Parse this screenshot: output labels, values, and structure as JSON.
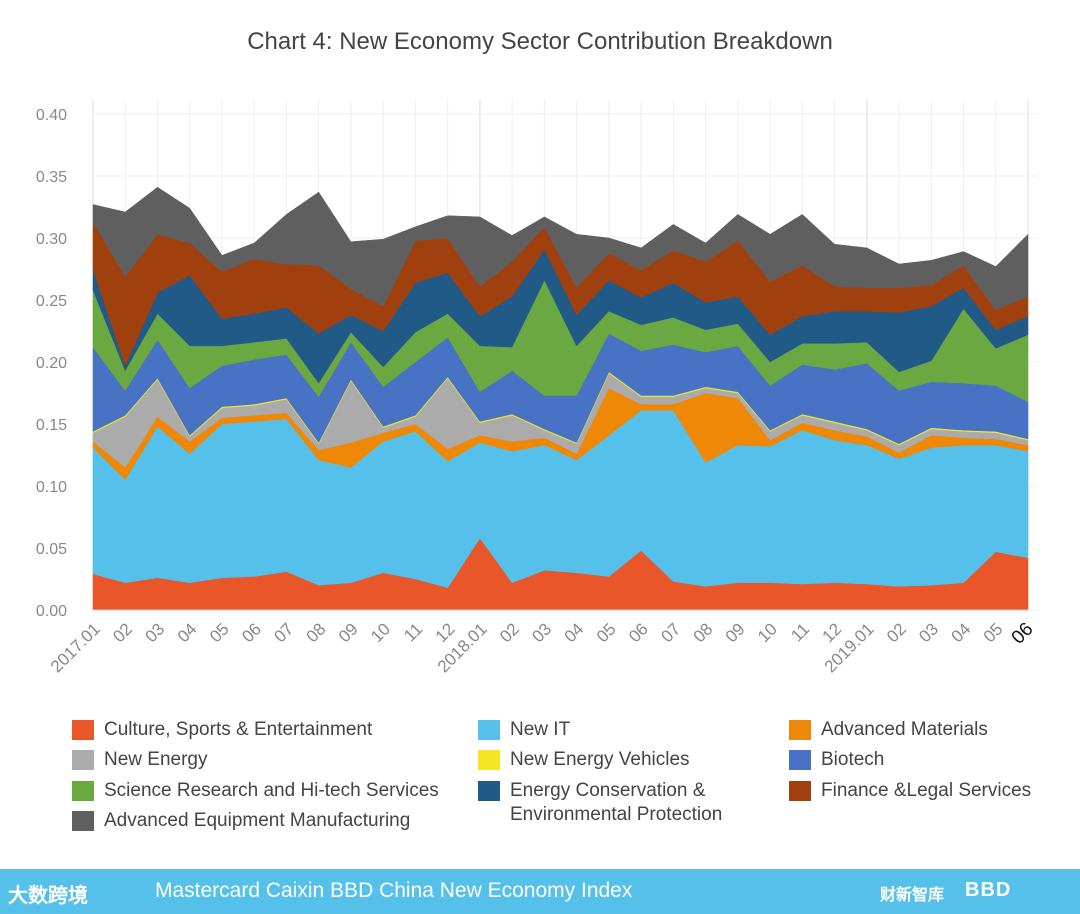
{
  "chart_data": {
    "type": "area",
    "title": "Chart 4: New Economy Sector Contribution Breakdown",
    "ylim": [
      0,
      0.4
    ],
    "yticks": [
      "0.00",
      "0.05",
      "0.10",
      "0.15",
      "0.20",
      "0.25",
      "0.30",
      "0.35",
      "0.40"
    ],
    "x": [
      "2017.01",
      "02",
      "03",
      "04",
      "05",
      "06",
      "07",
      "08",
      "09",
      "10",
      "11",
      "12",
      "2018.01",
      "02",
      "03",
      "04",
      "05",
      "06",
      "07",
      "08",
      "09",
      "10",
      "11",
      "12",
      "2019.01",
      "02",
      "03",
      "04",
      "05",
      "06"
    ],
    "stacked": true,
    "grid": true,
    "legend_position": "bottom",
    "series": [
      {
        "name": "Culture, Sports & Entertainment",
        "color": "#e8562a",
        "values": [
          0.029,
          0.022,
          0.026,
          0.022,
          0.026,
          0.027,
          0.031,
          0.02,
          0.022,
          0.03,
          0.025,
          0.018,
          0.058,
          0.022,
          0.032,
          0.03,
          0.027,
          0.048,
          0.023,
          0.019,
          0.022,
          0.022,
          0.021,
          0.022,
          0.021,
          0.019,
          0.02,
          0.022,
          0.047,
          0.042
        ]
      },
      {
        "name": "New IT",
        "color": "#55c0ea",
        "values": [
          0.102,
          0.083,
          0.122,
          0.104,
          0.124,
          0.125,
          0.123,
          0.101,
          0.093,
          0.106,
          0.119,
          0.102,
          0.077,
          0.106,
          0.101,
          0.091,
          0.114,
          0.113,
          0.138,
          0.1,
          0.111,
          0.11,
          0.124,
          0.115,
          0.112,
          0.103,
          0.111,
          0.111,
          0.086,
          0.086
        ]
      },
      {
        "name": "Advanced Materials",
        "color": "#ee8806",
        "values": [
          0.005,
          0.01,
          0.008,
          0.01,
          0.005,
          0.005,
          0.005,
          0.008,
          0.02,
          0.007,
          0.006,
          0.01,
          0.006,
          0.008,
          0.006,
          0.005,
          0.038,
          0.005,
          0.005,
          0.056,
          0.038,
          0.005,
          0.006,
          0.008,
          0.007,
          0.005,
          0.01,
          0.006,
          0.005,
          0.005
        ]
      },
      {
        "name": "New Energy",
        "color": "#ababab",
        "values": [
          0.007,
          0.041,
          0.03,
          0.004,
          0.008,
          0.008,
          0.011,
          0.005,
          0.05,
          0.004,
          0.006,
          0.057,
          0.01,
          0.021,
          0.006,
          0.008,
          0.012,
          0.006,
          0.006,
          0.004,
          0.004,
          0.007,
          0.006,
          0.006,
          0.005,
          0.006,
          0.005,
          0.005,
          0.005,
          0.004
        ]
      },
      {
        "name": "New Energy Vehicles",
        "color": "#f5e624",
        "values": [
          0.001,
          0.001,
          0.001,
          0.001,
          0.001,
          0.001,
          0.001,
          0.001,
          0.001,
          0.001,
          0.001,
          0.001,
          0.001,
          0.001,
          0.001,
          0.001,
          0.001,
          0.001,
          0.001,
          0.001,
          0.001,
          0.001,
          0.001,
          0.001,
          0.001,
          0.001,
          0.001,
          0.001,
          0.001,
          0.001
        ]
      },
      {
        "name": "Biotech",
        "color": "#4872c4",
        "values": [
          0.068,
          0.02,
          0.031,
          0.038,
          0.033,
          0.036,
          0.035,
          0.037,
          0.03,
          0.032,
          0.043,
          0.032,
          0.024,
          0.035,
          0.027,
          0.038,
          0.031,
          0.036,
          0.041,
          0.028,
          0.037,
          0.036,
          0.04,
          0.042,
          0.053,
          0.043,
          0.037,
          0.038,
          0.037,
          0.03
        ]
      },
      {
        "name": "Science Research and Hi-tech Services",
        "color": "#6aa842",
        "values": [
          0.046,
          0.016,
          0.021,
          0.034,
          0.016,
          0.014,
          0.013,
          0.011,
          0.008,
          0.016,
          0.024,
          0.019,
          0.037,
          0.019,
          0.093,
          0.04,
          0.018,
          0.021,
          0.022,
          0.018,
          0.018,
          0.019,
          0.017,
          0.021,
          0.017,
          0.015,
          0.017,
          0.06,
          0.03,
          0.054
        ]
      },
      {
        "name": "Energy Conservation & Environmental Protection",
        "color": "#215a86",
        "values": [
          0.017,
          0.004,
          0.017,
          0.057,
          0.022,
          0.023,
          0.025,
          0.04,
          0.014,
          0.029,
          0.04,
          0.033,
          0.024,
          0.041,
          0.025,
          0.025,
          0.025,
          0.022,
          0.028,
          0.022,
          0.022,
          0.022,
          0.022,
          0.026,
          0.025,
          0.048,
          0.044,
          0.017,
          0.015,
          0.015
        ]
      },
      {
        "name": "Finance &Legal Services",
        "color": "#a0400f",
        "values": [
          0.038,
          0.072,
          0.047,
          0.026,
          0.038,
          0.044,
          0.035,
          0.055,
          0.021,
          0.02,
          0.034,
          0.028,
          0.024,
          0.028,
          0.018,
          0.022,
          0.022,
          0.022,
          0.026,
          0.033,
          0.045,
          0.043,
          0.041,
          0.02,
          0.019,
          0.02,
          0.017,
          0.018,
          0.016,
          0.016
        ]
      },
      {
        "name": "Advanced Equipment Manufacturing",
        "color": "#5f5f5f",
        "values": [
          0.014,
          0.052,
          0.038,
          0.028,
          0.013,
          0.013,
          0.04,
          0.059,
          0.038,
          0.054,
          0.011,
          0.018,
          0.056,
          0.021,
          0.008,
          0.043,
          0.012,
          0.018,
          0.021,
          0.015,
          0.021,
          0.038,
          0.041,
          0.034,
          0.032,
          0.019,
          0.02,
          0.011,
          0.035,
          0.05
        ]
      }
    ],
    "legend": [
      "Culture, Sports & Entertainment",
      "New IT",
      "Advanced Materials",
      "New Energy",
      "New Energy Vehicles",
      "Biotech",
      "Science Research and Hi-tech Services",
      "Energy Conservation & Environmental Protection",
      "Finance &Legal Services",
      "Advanced Equipment Manufacturing"
    ]
  },
  "legend_items": [
    {
      "label": "Culture, Sports & Entertainment",
      "color": "#e8562a"
    },
    {
      "label": "New IT",
      "color": "#55c0ea"
    },
    {
      "label": "Advanced Materials",
      "color": "#ee8806"
    },
    {
      "label": "New Energy",
      "color": "#ababab"
    },
    {
      "label": "New Energy Vehicles",
      "color": "#f5e624"
    },
    {
      "label": "Biotech",
      "color": "#4872c4"
    },
    {
      "label": "Science Research and Hi-tech Services",
      "color": "#6aa842"
    },
    {
      "label": "Energy Conservation &",
      "label2": "Environmental Protection",
      "color": "#215a86"
    },
    {
      "label": "Finance &Legal Services",
      "color": "#a0400f"
    },
    {
      "label": "Advanced Equipment Manufacturing",
      "color": "#5f5f5f"
    }
  ],
  "footer": {
    "text": "Mastercard Caixin BBD China New Economy Index",
    "logo_left": "大数跨境",
    "logo_mid": "财新智库",
    "logo_right": "BBD",
    "color": "#55c0ea"
  }
}
